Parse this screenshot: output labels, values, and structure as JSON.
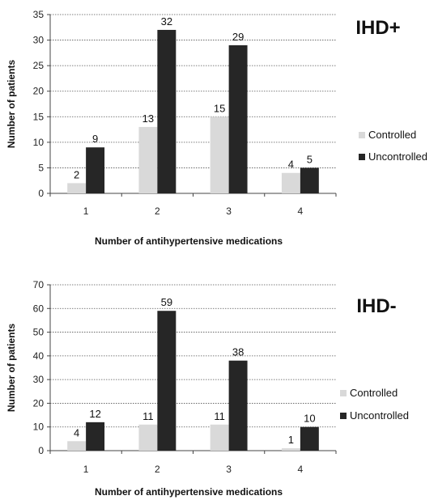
{
  "chart_data": [
    {
      "type": "bar",
      "title": "IHD+",
      "xlabel": "Number of antihypertensive medications",
      "ylabel": "Number of patients",
      "categories": [
        "1",
        "2",
        "3",
        "4"
      ],
      "ylim": [
        0,
        35
      ],
      "yticks": [
        0,
        5,
        10,
        15,
        20,
        25,
        30,
        35
      ],
      "grid": true,
      "legend_position": "right",
      "series": [
        {
          "name": "Controlled",
          "color": "#d9d9d9",
          "values": [
            2,
            13,
            15,
            4
          ]
        },
        {
          "name": "Uncontrolled",
          "color": "#262626",
          "values": [
            9,
            32,
            29,
            5
          ]
        }
      ]
    },
    {
      "type": "bar",
      "title": "IHD-",
      "xlabel": "Number of antihypertensive medications",
      "ylabel": "Number of patients",
      "categories": [
        "1",
        "2",
        "3",
        "4"
      ],
      "ylim": [
        0,
        70
      ],
      "yticks": [
        0,
        10,
        20,
        30,
        40,
        50,
        60,
        70
      ],
      "grid": true,
      "legend_position": "right",
      "series": [
        {
          "name": "Controlled",
          "color": "#d9d9d9",
          "values": [
            4,
            11,
            11,
            1
          ]
        },
        {
          "name": "Uncontrolled",
          "color": "#262626",
          "values": [
            12,
            59,
            38,
            10
          ]
        }
      ]
    }
  ]
}
